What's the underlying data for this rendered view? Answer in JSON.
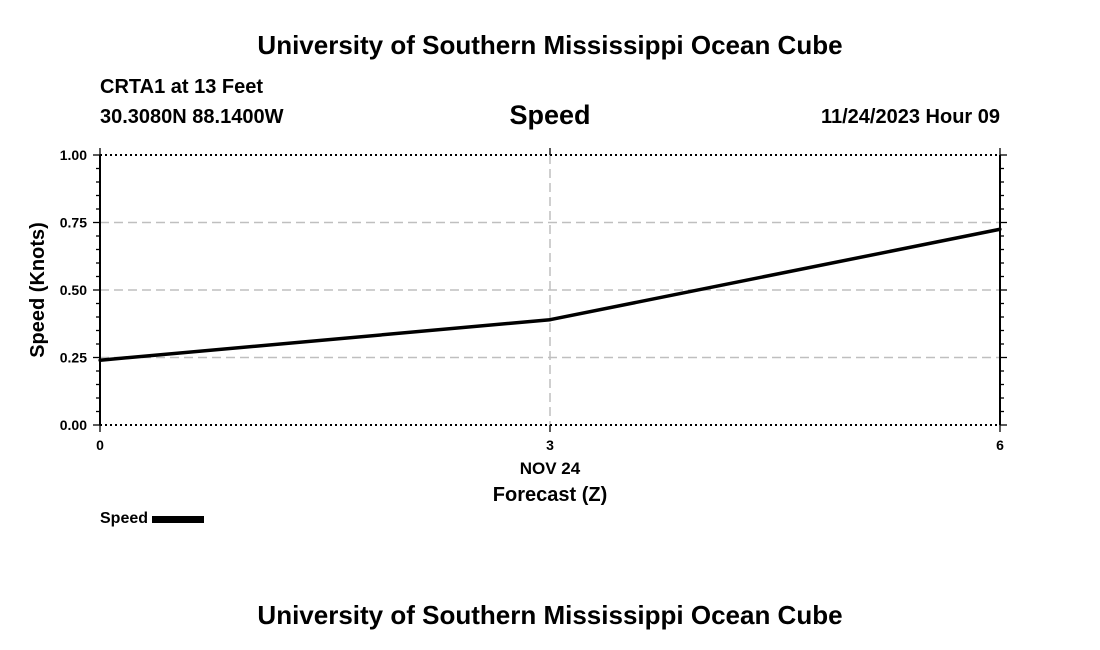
{
  "header": {
    "title": "University of Southern Mississippi Ocean Cube"
  },
  "station": {
    "name": "CRTA1 at 13 Feet",
    "coords": "30.3080N  88.1400W"
  },
  "datetime": "11/24/2023 Hour 09",
  "footer": {
    "title": "University of Southern Mississippi Ocean Cube"
  },
  "chart_data": {
    "type": "line",
    "title": "Speed",
    "xlabel": "Forecast (Z)",
    "xdate": "NOV 24",
    "ylabel": "Speed (Knots)",
    "xlim": [
      0,
      6
    ],
    "ylim": [
      0,
      1
    ],
    "xticks": [
      0,
      3,
      6
    ],
    "xtick_labels": [
      "0",
      "3",
      "6"
    ],
    "yticks": [
      0,
      0.25,
      0.5,
      0.75,
      1.0
    ],
    "ytick_labels": [
      "0.00",
      "0.25",
      "0.50",
      "0.75",
      "1.00"
    ],
    "grid": true,
    "legend": "bottom-left",
    "series": [
      {
        "name": "Speed",
        "x": [
          0,
          3,
          6
        ],
        "values": [
          0.24,
          0.39,
          0.725
        ],
        "color": "#000000"
      }
    ]
  }
}
